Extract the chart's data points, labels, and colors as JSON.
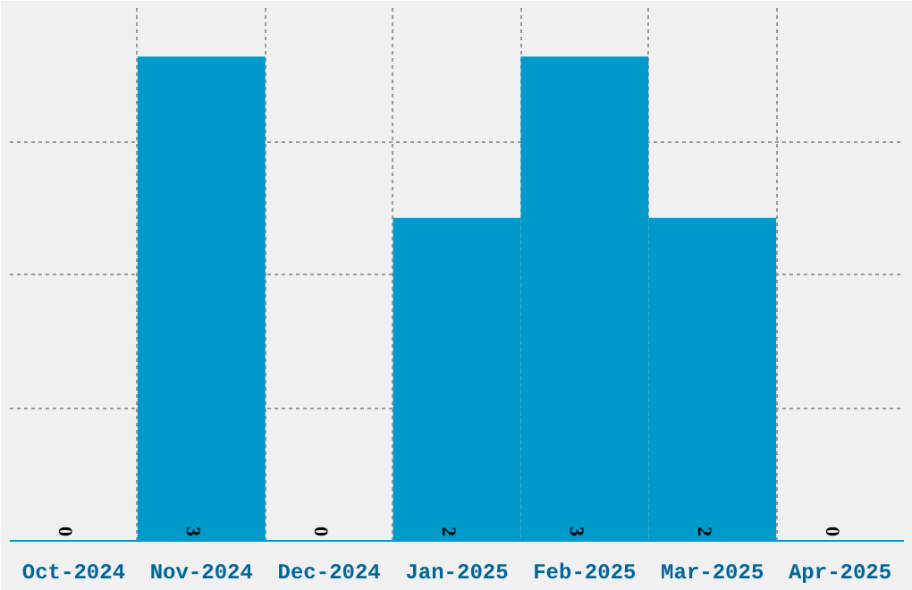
{
  "chart_data": {
    "type": "bar",
    "categories": [
      "Oct-2024",
      "Nov-2024",
      "Dec-2024",
      "Jan-2025",
      "Feb-2025",
      "Mar-2025",
      "Apr-2025"
    ],
    "values": [
      0,
      3,
      0,
      2,
      3,
      2,
      0
    ],
    "color": "#0099cc",
    "data_labels": true,
    "grid": true,
    "tick_labels": "x",
    "ylim": [
      0,
      3.3
    ],
    "yticks": [
      {
        "value": 0,
        "label": null
      },
      {
        "value": 0.825,
        "label": null
      },
      {
        "value": 1.65,
        "label": null
      },
      {
        "value": 2.475,
        "label": null
      },
      {
        "value": 3.3,
        "label": null
      }
    ]
  }
}
